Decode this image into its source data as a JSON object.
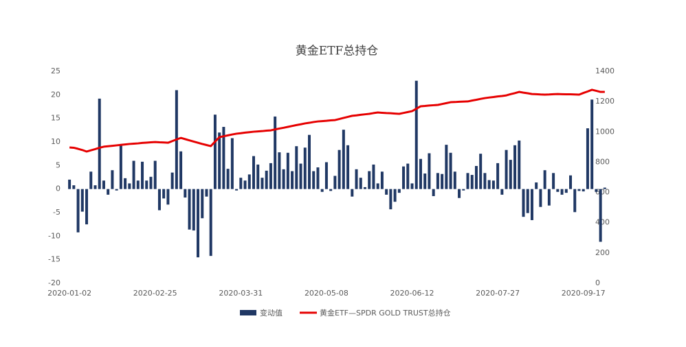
{
  "chart_data": {
    "type": "bar",
    "title": "黄金ETF总持仓",
    "categories": [
      "2020-01-02",
      null,
      null,
      null,
      null,
      null,
      null,
      null,
      null,
      null,
      null,
      null,
      null,
      null,
      null,
      null,
      null,
      null,
      null,
      null,
      "2020-02-25",
      null,
      null,
      null,
      null,
      null,
      null,
      null,
      null,
      null,
      null,
      null,
      null,
      null,
      null,
      null,
      null,
      null,
      null,
      null,
      "2020-03-31",
      null,
      null,
      null,
      null,
      null,
      null,
      null,
      null,
      null,
      null,
      null,
      null,
      null,
      null,
      null,
      null,
      null,
      null,
      null,
      "2020-05-08",
      null,
      null,
      null,
      null,
      null,
      null,
      null,
      null,
      null,
      null,
      null,
      null,
      null,
      null,
      null,
      null,
      null,
      null,
      null,
      "2020-06-12",
      null,
      null,
      null,
      null,
      null,
      null,
      null,
      null,
      null,
      null,
      null,
      null,
      null,
      null,
      null,
      null,
      null,
      null,
      null,
      "2020-07-27",
      null,
      null,
      null,
      null,
      null,
      null,
      null,
      null,
      null,
      null,
      null,
      null,
      null,
      null,
      null,
      null,
      null,
      null,
      null,
      "2020-09-17",
      null,
      null,
      null,
      null,
      null
    ],
    "series": [
      {
        "name": "变动值",
        "type": "bar",
        "color": "#203864",
        "values": [
          2,
          0.8,
          -9.2,
          -4.8,
          -7.5,
          3.7,
          0.8,
          19.2,
          1.8,
          -1.2,
          4,
          -0.3,
          9.3,
          2.3,
          1.2,
          6,
          1.8,
          5.8,
          1.8,
          2.6,
          6,
          -4.5,
          -2,
          -3.3,
          3.5,
          21,
          8,
          -1.8,
          -8.6,
          -8.8,
          -14.5,
          -6.2,
          -1.6,
          -14.2,
          15.8,
          12,
          13.2,
          4.3,
          10.8,
          -0.3,
          2.4,
          1.8,
          3.1,
          7,
          5.2,
          2.4,
          3.9,
          5.5,
          15.4,
          7.8,
          4.2,
          7.7,
          3.8,
          9.1,
          5.4,
          8.8,
          11.5,
          3.8,
          4.6,
          -0.6,
          5.7,
          -0.4,
          2.8,
          8.3,
          12.6,
          9.3,
          -1.6,
          4.2,
          2.4,
          0.4,
          3.8,
          5.2,
          1.2,
          3.7,
          -1.2,
          -4.3,
          -2.7,
          -0.8,
          4.8,
          5.4,
          1.2,
          23,
          6.4,
          3.3,
          7.6,
          -1.5,
          3.4,
          3.2,
          9.4,
          7.7,
          3.7,
          -1.9,
          -0.3,
          3.4,
          3,
          4.9,
          7.5,
          3.4,
          1.9,
          1.8,
          5.5,
          -1.2,
          8.3,
          6.2,
          9.3,
          10.3,
          -5.9,
          -5.1,
          -6.6,
          1.4,
          -3.8,
          4,
          -3.5,
          3.4,
          -0.6,
          -1.2,
          -0.8,
          2.9,
          -4.9,
          -0.4,
          -0.5,
          12.9,
          19,
          -0.6,
          -11.2,
          0.3
        ]
      },
      {
        "name": "黄金ETF—SPDR GOLD TRUST总持仓",
        "type": "line",
        "axis": "y2",
        "color": "#e60000",
        "values": [
          897,
          895,
          888,
          880,
          870,
          878,
          886,
          895,
          902,
          905,
          908,
          911,
          914,
          917,
          920,
          922,
          924,
          927,
          929,
          931,
          933,
          931,
          930,
          928,
          939,
          950,
          960,
          952,
          944,
          936,
          928,
          920,
          913,
          906,
          936,
          965,
          971,
          977,
          983,
          988,
          991,
          995,
          998,
          1001,
          1003,
          1005,
          1008,
          1010,
          1016,
          1022,
          1027,
          1033,
          1039,
          1045,
          1050,
          1056,
          1060,
          1065,
          1069,
          1071,
          1073,
          1076,
          1078,
          1085,
          1092,
          1099,
          1106,
          1109,
          1113,
          1116,
          1119,
          1124,
          1128,
          1126,
          1124,
          1123,
          1121,
          1119,
          1125,
          1131,
          1137,
          1153,
          1169,
          1171,
          1174,
          1176,
          1178,
          1184,
          1190,
          1196,
          1197,
          1199,
          1200,
          1201,
          1207,
          1212,
          1218,
          1223,
          1227,
          1230,
          1234,
          1237,
          1241,
          1249,
          1256,
          1264,
          1259,
          1255,
          1250,
          1249,
          1247,
          1246,
          1247,
          1249,
          1250,
          1249,
          1248,
          1248,
          1247,
          1246,
          1257,
          1267,
          1278,
          1271,
          1264,
          1264
        ]
      }
    ],
    "ylim": [
      -20,
      25
    ],
    "yticks": [
      -20,
      -15,
      -10,
      -5,
      0,
      5,
      10,
      15,
      20,
      25
    ],
    "y2lim": [
      0,
      1400
    ],
    "y2ticks": [
      0,
      200,
      400,
      600,
      800,
      1000,
      1200,
      1400
    ],
    "grid": false,
    "legend": "bottom"
  }
}
